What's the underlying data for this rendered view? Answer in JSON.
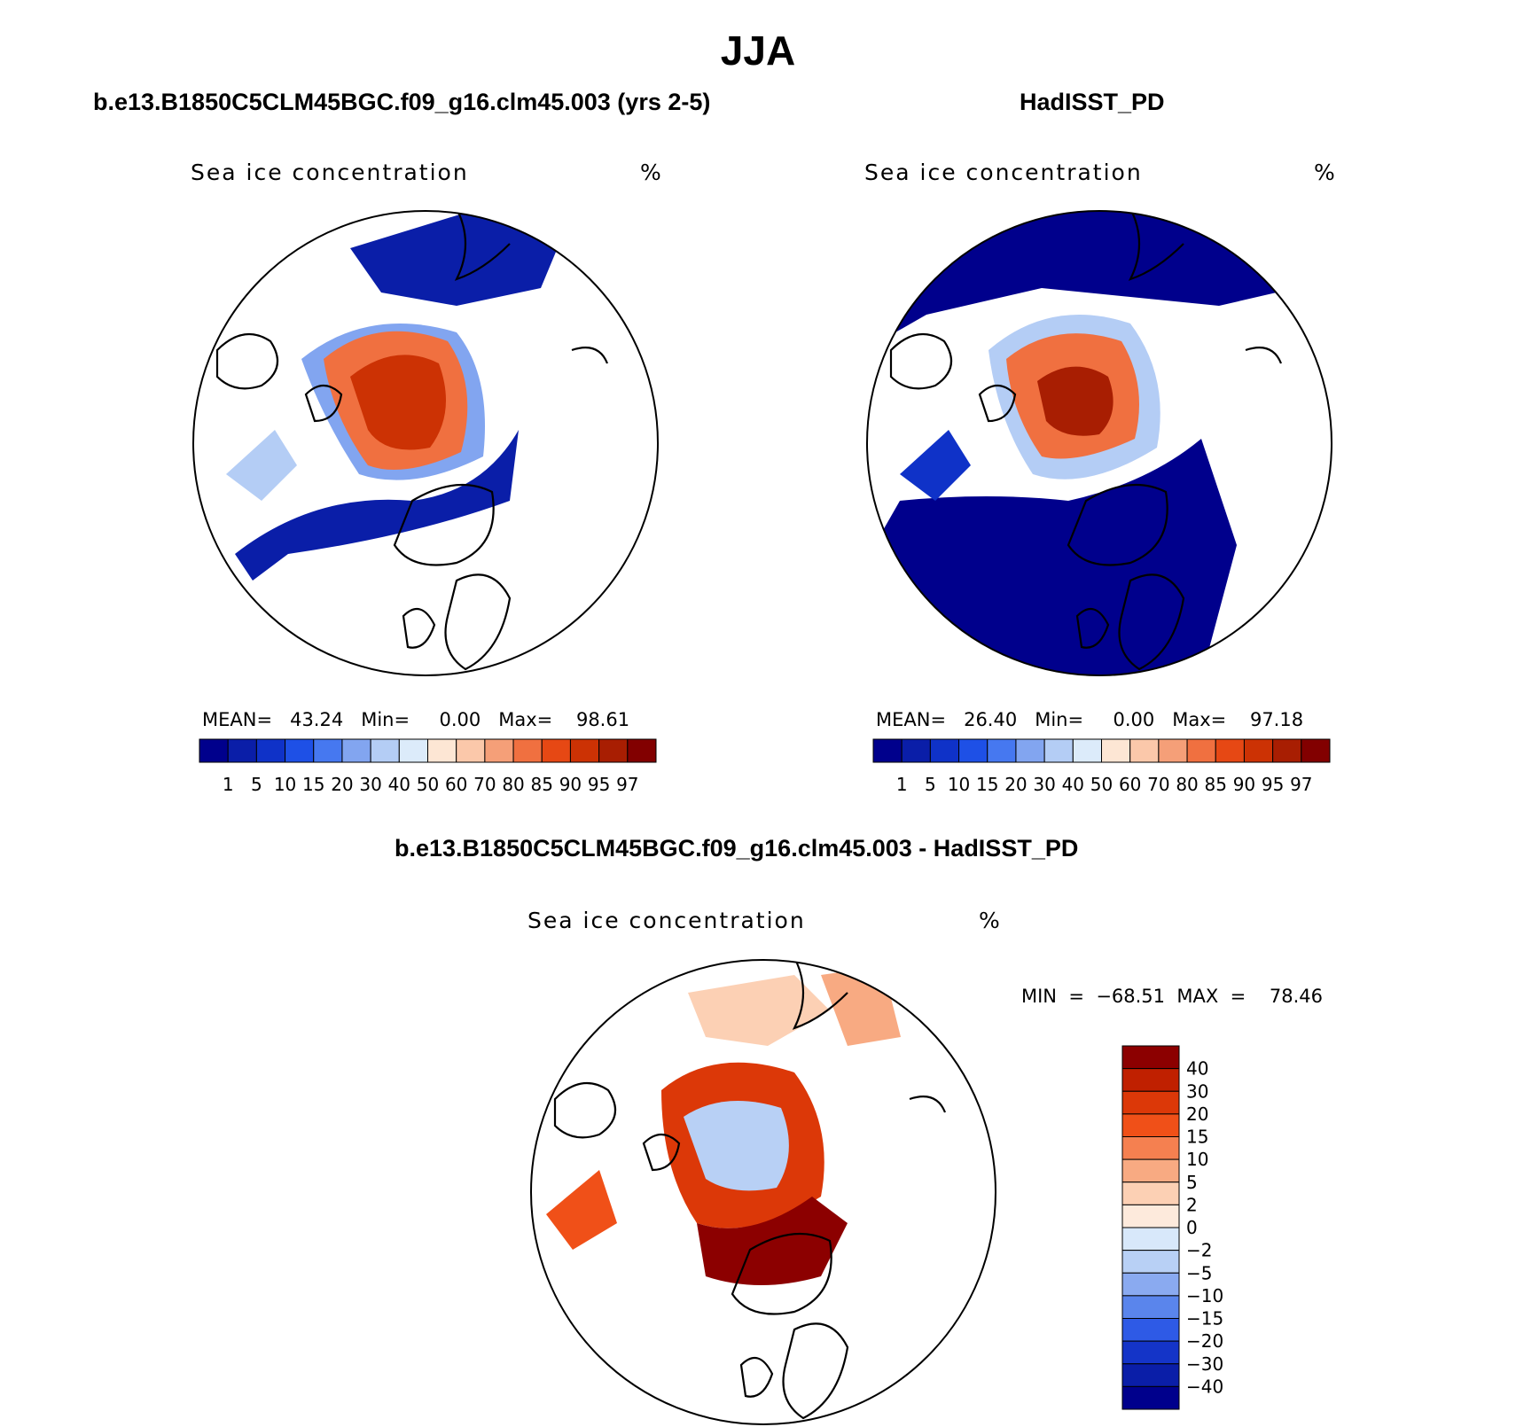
{
  "title": "JJA",
  "panels": [
    {
      "title": "b.e13.B1850C5CLM45BGC.f09_g16.clm45.003 (yrs 2-5)",
      "variable": "Sea ice concentration",
      "units": "%",
      "stats": "MEAN=   43.24   Min=     0.00   Max=    98.61"
    },
    {
      "title": "HadISST_PD",
      "variable": "Sea ice concentration",
      "units": "%",
      "stats": "MEAN=   26.40   Min=     0.00   Max=    97.18"
    },
    {
      "title": "b.e13.B1850C5CLM45BGC.f09_g16.clm45.003 - HadISST_PD",
      "variable": "Sea ice concentration",
      "units": "%",
      "stats": "MIN  =  −68.51  MAX  =    78.46"
    }
  ],
  "chart_data": [
    {
      "type": "heatmap",
      "projection": "north polar stereographic",
      "colorbar": {
        "orientation": "horizontal",
        "levels": [
          "1",
          "5",
          "10",
          "15",
          "20",
          "30",
          "40",
          "50",
          "60",
          "70",
          "80",
          "85",
          "90",
          "95",
          "97"
        ],
        "colors": [
          "#00008c",
          "#0a1ea8",
          "#0f32c8",
          "#1e50e6",
          "#4678f0",
          "#82a5f0",
          "#b4cdf5",
          "#dcebfa",
          "#fde6d4",
          "#fbc8aa",
          "#f59f78",
          "#f07040",
          "#e64814",
          "#cc3204",
          "#a81e02",
          "#820000"
        ]
      },
      "stats": {
        "mean": 43.24,
        "min": 0.0,
        "max": 98.61
      }
    },
    {
      "type": "heatmap",
      "projection": "north polar stereographic",
      "colorbar": {
        "orientation": "horizontal",
        "levels": [
          "1",
          "5",
          "10",
          "15",
          "20",
          "30",
          "40",
          "50",
          "60",
          "70",
          "80",
          "85",
          "90",
          "95",
          "97"
        ],
        "colors": [
          "#00008c",
          "#0a1ea8",
          "#0f32c8",
          "#1e50e6",
          "#4678f0",
          "#82a5f0",
          "#b4cdf5",
          "#dcebfa",
          "#fde6d4",
          "#fbc8aa",
          "#f59f78",
          "#f07040",
          "#e64814",
          "#cc3204",
          "#a81e02",
          "#820000"
        ]
      },
      "stats": {
        "mean": 26.4,
        "min": 0.0,
        "max": 97.18
      }
    },
    {
      "type": "heatmap",
      "projection": "north polar stereographic",
      "colorbar": {
        "orientation": "vertical",
        "levels": [
          "40",
          "30",
          "20",
          "15",
          "10",
          "5",
          "2",
          "0",
          "−2",
          "−5",
          "−10",
          "−15",
          "−20",
          "−30",
          "−40"
        ],
        "colors": [
          "#8c0000",
          "#c02000",
          "#dc3808",
          "#f05018",
          "#f58050",
          "#f8aa82",
          "#fcd0b4",
          "#fdeadc",
          "#d8e8fa",
          "#b8d0f5",
          "#8aaaf0",
          "#5a85ec",
          "#2e5ae6",
          "#1434c8",
          "#0a1ea8",
          "#00008c"
        ]
      },
      "stats": {
        "min": -68.51,
        "max": 78.46
      }
    }
  ]
}
